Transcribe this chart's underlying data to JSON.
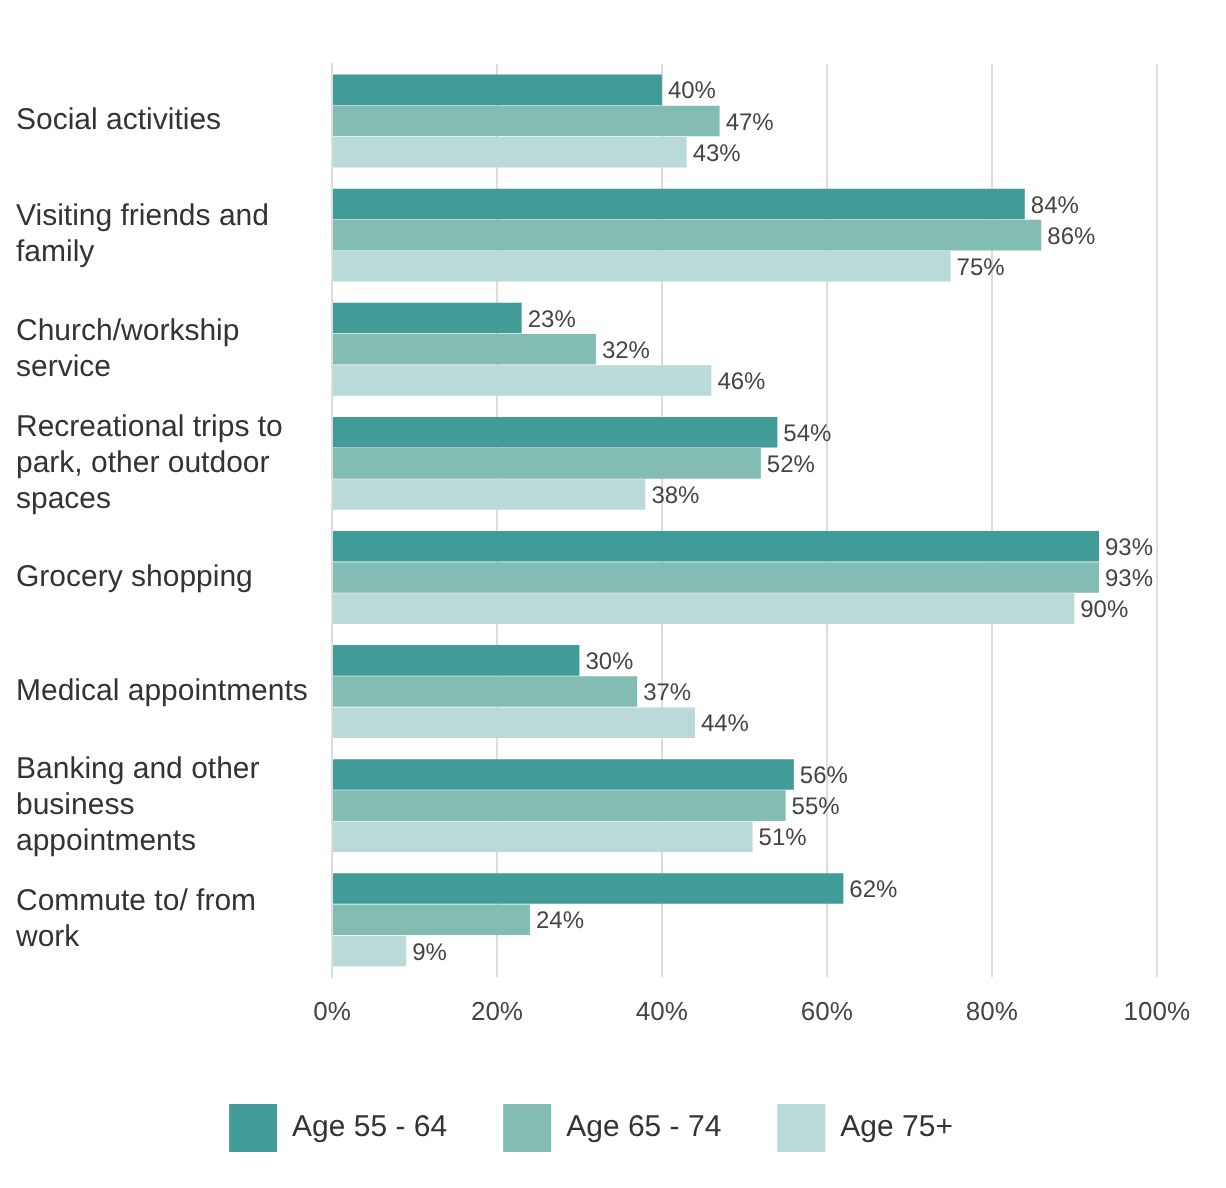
{
  "chart_data": {
    "type": "bar",
    "orientation": "horizontal",
    "categories": [
      "Social activities",
      "Visiting friends and family",
      "Church/workship service",
      "Recreational trips to park, other outdoor spaces",
      "Grocery shopping",
      "Medical appointments",
      "Banking and other business appointments",
      "Commute to/ from work"
    ],
    "series": [
      {
        "name": "Age 55 - 64",
        "color": "#419c97",
        "values": [
          40,
          84,
          23,
          54,
          93,
          30,
          56,
          62
        ],
        "value_labels": [
          "40%",
          "84%",
          "23%",
          "54%",
          "93%",
          "30%",
          "56%",
          "62%"
        ]
      },
      {
        "name": "Age 65 - 74",
        "color": "#82bcb3",
        "values": [
          47,
          86,
          32,
          52,
          93,
          37,
          55,
          24
        ],
        "value_labels": [
          "47%",
          "86%",
          "32%",
          "52%",
          "93%",
          "37%",
          "55%",
          "24%"
        ]
      },
      {
        "name": "Age 75+",
        "color": "#b9dad8",
        "values": [
          43,
          75,
          46,
          38,
          90,
          44,
          51,
          9
        ],
        "value_labels": [
          "43%",
          "75%",
          "46%",
          "38%",
          "90%",
          "44%",
          "51%",
          "9%"
        ]
      }
    ],
    "xlim": [
      0,
      100
    ],
    "xticks": [
      {
        "value": 0,
        "label": "0%"
      },
      {
        "value": 20,
        "label": "20%"
      },
      {
        "value": 40,
        "label": "40%"
      },
      {
        "value": 60,
        "label": "60%"
      },
      {
        "value": 80,
        "label": "80%"
      },
      {
        "value": 100,
        "label": "100%"
      }
    ],
    "grid": "x",
    "legend": "bottom"
  }
}
